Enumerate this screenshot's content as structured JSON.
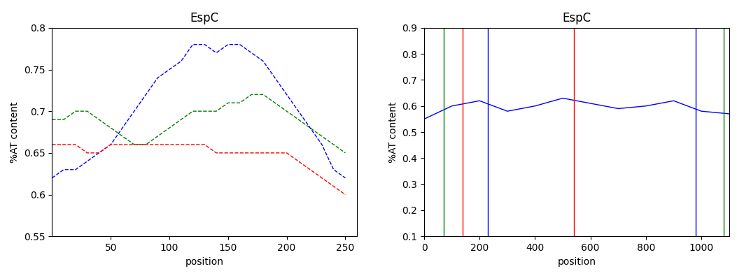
{
  "chart_data": [
    {
      "type": "line",
      "title": "EspC",
      "x_label": "position",
      "y_label": "%AT content",
      "x": [
        0,
        10,
        20,
        30,
        40,
        50,
        60,
        70,
        80,
        90,
        100,
        110,
        120,
        130,
        140,
        150,
        160,
        170,
        180,
        190,
        200,
        210,
        220,
        230,
        240,
        250
      ],
      "series": [
        {
          "color": "green",
          "line_style": "dashed",
          "values": [
            0.69,
            0.69,
            0.7,
            0.7,
            0.69,
            0.68,
            0.67,
            0.66,
            0.66,
            0.67,
            0.68,
            0.69,
            0.7,
            0.7,
            0.7,
            0.71,
            0.71,
            0.72,
            0.72,
            0.71,
            0.7,
            0.69,
            0.68,
            0.67,
            0.66,
            0.65
          ]
        },
        {
          "color": "blue",
          "line_style": "dashed",
          "values": [
            0.62,
            0.63,
            0.63,
            0.64,
            0.65,
            0.66,
            0.68,
            0.7,
            0.72,
            0.74,
            0.75,
            0.76,
            0.78,
            0.78,
            0.77,
            0.78,
            0.78,
            0.77,
            0.76,
            0.74,
            0.72,
            0.7,
            0.68,
            0.66,
            0.63,
            0.62
          ]
        },
        {
          "color": "red",
          "line_style": "dashed",
          "values": [
            0.66,
            0.66,
            0.66,
            0.65,
            0.65,
            0.66,
            0.66,
            0.66,
            0.66,
            0.66,
            0.66,
            0.66,
            0.66,
            0.66,
            0.65,
            0.65,
            0.65,
            0.65,
            0.65,
            0.65,
            0.65,
            0.64,
            0.63,
            0.62,
            0.61,
            0.6
          ]
        }
      ],
      "xlim": [
        0,
        260
      ],
      "xticks": [
        50,
        100,
        150,
        200,
        250
      ],
      "ylim": [
        0.55,
        0.8
      ],
      "yticks": [
        0.55,
        0.6,
        0.65,
        0.7,
        0.75,
        0.8
      ]
    },
    {
      "type": "line",
      "title": "EspC",
      "x_label": "position",
      "y_label": "%AT content",
      "x": [
        0,
        100,
        200,
        300,
        400,
        500,
        600,
        700,
        800,
        900,
        1000,
        1100
      ],
      "series": [
        {
          "color": "blue",
          "values": [
            0.55,
            0.6,
            0.62,
            0.58,
            0.6,
            0.63,
            0.61,
            0.59,
            0.6,
            0.62,
            0.58,
            0.57
          ]
        },
        {
          "type": "vline",
          "color": "red",
          "x": [
            140,
            540
          ]
        },
        {
          "type": "vline",
          "color": "green",
          "x": [
            70,
            1080
          ]
        },
        {
          "type": "vline",
          "color": "blue",
          "x": [
            230,
            980
          ]
        }
      ],
      "xlim": [
        0,
        1100
      ],
      "xticks": [
        0,
        200,
        400,
        600,
        800,
        1000
      ],
      "ylim": [
        0.1,
        0.9
      ],
      "yticks": [
        0.1,
        0.2,
        0.3,
        0.4,
        0.5,
        0.6,
        0.7,
        0.8,
        0.9
      ]
    }
  ]
}
